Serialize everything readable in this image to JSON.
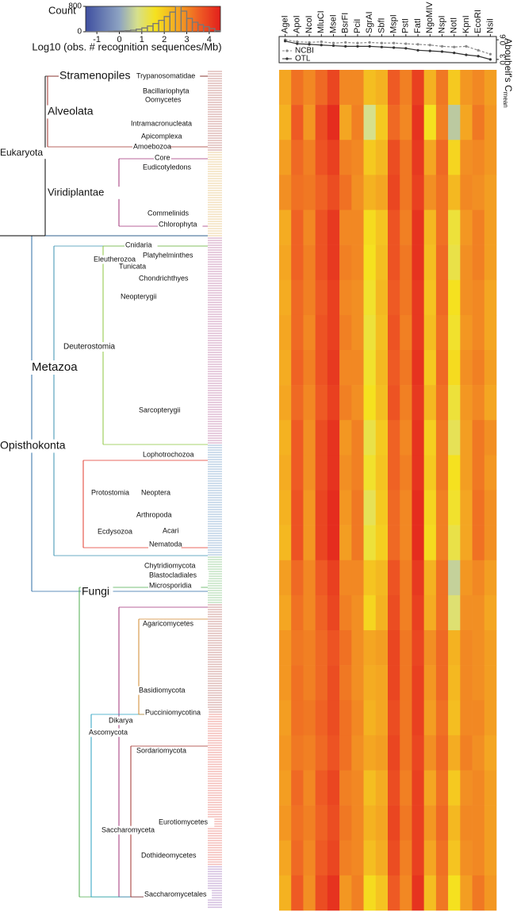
{
  "chart_data": [
    {
      "type": "histogram",
      "xlabel": "Log10 (obs. # recognition sequences/Mb)",
      "ylabel": "Count",
      "bins": [
        -1.5,
        -1.25,
        -1,
        -0.75,
        -0.5,
        -0.25,
        0,
        0.25,
        0.5,
        0.75,
        1,
        1.25,
        1.5,
        1.75,
        2,
        2.25,
        2.5,
        2.75,
        3,
        3.25,
        3.5,
        3.75,
        4,
        4.25,
        4.5
      ],
      "counts": [
        0,
        0,
        10,
        10,
        15,
        20,
        25,
        35,
        50,
        80,
        120,
        180,
        260,
        360,
        480,
        620,
        800,
        650,
        420,
        300,
        220,
        160,
        100,
        30
      ],
      "xlim": [
        -1.5,
        4.5
      ],
      "xticks": [
        -1,
        0,
        1,
        2,
        3,
        4
      ],
      "ylim": [
        0,
        800
      ],
      "yticks": [
        0,
        800
      ],
      "color": "#777777",
      "colorscale": [
        {
          "value": -1.5,
          "color": "#3f4fa0"
        },
        {
          "value": 0,
          "color": "#8da3c2"
        },
        {
          "value": 0.8,
          "color": "#d6e08c"
        },
        {
          "value": 1.6,
          "color": "#f5e11f"
        },
        {
          "value": 2.6,
          "color": "#f4a622"
        },
        {
          "value": 3.6,
          "color": "#ee5a24"
        },
        {
          "value": 4.5,
          "color": "#e21f1c"
        }
      ]
    },
    {
      "type": "line",
      "ylabel": "Abouheif's C",
      "ylabel_sub": "mean",
      "categories": [
        "AgeI",
        "ApoI",
        "NcoI",
        "MluCI",
        "MseI",
        "BsrFI",
        "PciI",
        "SgrAI",
        "SbfI",
        "MspI",
        "PstI",
        "FatI",
        "NgoMIV",
        "NspI",
        "NotI",
        "KpnI",
        "EcoRI",
        "NsiI"
      ],
      "series": [
        {
          "name": "NCBI",
          "color": "#888888",
          "linestyle": "dashed",
          "values": [
            0.6,
            0.57,
            0.56,
            0.57,
            0.55,
            0.56,
            0.55,
            0.56,
            0.55,
            0.55,
            0.54,
            0.53,
            0.52,
            0.5,
            0.49,
            0.5,
            0.44,
            0.38
          ]
        },
        {
          "name": "OTL",
          "color": "#333333",
          "linestyle": "solid",
          "values": [
            0.58,
            0.54,
            0.53,
            0.52,
            0.51,
            0.5,
            0.5,
            0.5,
            0.49,
            0.48,
            0.47,
            0.44,
            0.43,
            0.42,
            0.4,
            0.37,
            0.35,
            0.3
          ]
        }
      ],
      "ylim": [
        0.25,
        0.65
      ],
      "yticks": [
        0.3,
        0.6
      ]
    },
    {
      "type": "heatmap",
      "values": [
        [
          2.6,
          3.3,
          3.0,
          3.4,
          3.9,
          3.0,
          3.0,
          2.2,
          2.4,
          3.6,
          3.1,
          4.0,
          2.4,
          3.2,
          2.0,
          2.8,
          3.0,
          2.7
        ],
        [
          2.4,
          3.6,
          2.8,
          3.8,
          4.3,
          2.6,
          3.1,
          0.8,
          2.0,
          3.4,
          3.0,
          4.2,
          1.6,
          3.1,
          0.5,
          2.6,
          3.2,
          2.8
        ],
        [
          2.7,
          3.4,
          3.1,
          3.7,
          4.0,
          3.1,
          3.0,
          2.0,
          2.3,
          3.8,
          3.2,
          4.1,
          2.6,
          3.4,
          1.8,
          2.9,
          3.0,
          2.8
        ],
        [
          2.9,
          3.3,
          3.2,
          3.5,
          3.8,
          3.3,
          2.9,
          2.4,
          2.6,
          3.9,
          3.2,
          4.0,
          2.9,
          3.3,
          2.3,
          3.0,
          2.9,
          2.7
        ],
        [
          2.5,
          3.5,
          3.0,
          3.7,
          4.1,
          3.0,
          3.0,
          1.7,
          2.1,
          3.7,
          3.1,
          4.2,
          2.3,
          3.3,
          1.4,
          2.8,
          3.1,
          2.7
        ],
        [
          2.6,
          3.5,
          3.1,
          3.7,
          4.1,
          3.1,
          3.0,
          1.6,
          2.2,
          3.7,
          3.2,
          4.2,
          2.2,
          3.4,
          1.3,
          2.9,
          3.1,
          2.7
        ],
        [
          2.5,
          3.4,
          3.1,
          3.6,
          4.0,
          3.0,
          2.9,
          1.5,
          2.3,
          3.6,
          3.2,
          4.1,
          2.1,
          3.4,
          1.6,
          2.9,
          3.0,
          2.6
        ],
        [
          2.6,
          3.4,
          3.0,
          3.7,
          4.0,
          3.1,
          2.9,
          1.4,
          2.2,
          3.7,
          3.1,
          4.1,
          2.2,
          3.3,
          1.5,
          2.8,
          3.0,
          2.6
        ],
        [
          2.5,
          3.5,
          3.1,
          3.7,
          4.1,
          3.0,
          3.0,
          1.5,
          2.3,
          3.6,
          3.2,
          4.2,
          2.0,
          3.4,
          1.7,
          2.9,
          3.1,
          2.7
        ],
        [
          2.6,
          3.4,
          3.0,
          3.6,
          4.0,
          3.1,
          2.9,
          1.6,
          2.2,
          3.7,
          3.1,
          4.1,
          2.3,
          3.3,
          1.4,
          2.8,
          3.0,
          2.6
        ],
        [
          2.4,
          3.6,
          2.9,
          3.8,
          4.2,
          2.8,
          3.1,
          1.3,
          2.0,
          3.5,
          3.0,
          4.2,
          1.9,
          3.2,
          1.2,
          2.7,
          3.2,
          2.9
        ],
        [
          2.5,
          3.6,
          2.9,
          3.8,
          4.2,
          2.9,
          3.1,
          1.5,
          2.1,
          3.5,
          3.1,
          4.2,
          2.0,
          3.2,
          1.6,
          2.7,
          3.2,
          2.8
        ],
        [
          2.4,
          3.7,
          2.8,
          3.9,
          4.3,
          2.8,
          3.2,
          1.2,
          2.0,
          3.4,
          3.0,
          4.3,
          1.8,
          3.1,
          1.5,
          2.6,
          3.3,
          2.9
        ],
        [
          2.3,
          3.7,
          2.8,
          3.9,
          4.3,
          2.7,
          3.2,
          1.4,
          1.9,
          3.4,
          3.0,
          4.3,
          1.7,
          3.1,
          1.3,
          2.6,
          3.3,
          2.9
        ],
        [
          2.7,
          3.4,
          3.0,
          3.6,
          4.0,
          3.0,
          3.0,
          2.1,
          2.3,
          3.7,
          3.1,
          4.1,
          2.4,
          3.3,
          0.6,
          2.8,
          3.0,
          2.7
        ],
        [
          2.6,
          3.3,
          3.0,
          3.5,
          3.9,
          3.1,
          2.9,
          1.8,
          2.4,
          3.8,
          3.1,
          4.0,
          2.5,
          3.3,
          1.0,
          2.9,
          2.9,
          2.6
        ],
        [
          2.8,
          3.2,
          3.1,
          3.4,
          3.7,
          3.3,
          2.9,
          2.6,
          2.7,
          3.9,
          3.2,
          3.9,
          2.9,
          3.4,
          2.4,
          3.0,
          2.9,
          2.7
        ],
        [
          2.8,
          3.3,
          3.1,
          3.4,
          3.8,
          3.2,
          2.9,
          2.5,
          2.6,
          3.9,
          3.2,
          4.0,
          2.8,
          3.4,
          2.3,
          3.0,
          2.9,
          2.7
        ],
        [
          2.7,
          3.3,
          3.2,
          3.5,
          3.8,
          3.3,
          3.0,
          2.4,
          2.6,
          3.8,
          3.2,
          4.0,
          2.7,
          3.3,
          2.2,
          3.0,
          3.0,
          2.7
        ],
        [
          2.8,
          3.2,
          3.1,
          3.4,
          3.7,
          3.3,
          2.9,
          2.6,
          2.7,
          3.9,
          3.2,
          3.9,
          2.9,
          3.4,
          2.5,
          3.1,
          2.9,
          2.6
        ],
        [
          2.7,
          3.4,
          3.0,
          3.6,
          3.9,
          3.1,
          3.0,
          2.2,
          2.5,
          3.8,
          3.1,
          4.0,
          2.6,
          3.3,
          2.0,
          2.9,
          3.0,
          2.7
        ],
        [
          2.8,
          3.3,
          3.1,
          3.5,
          3.8,
          3.2,
          3.0,
          2.4,
          2.6,
          3.9,
          3.2,
          4.0,
          2.8,
          3.4,
          2.3,
          3.0,
          3.0,
          2.7
        ],
        [
          2.6,
          3.4,
          3.0,
          3.6,
          3.9,
          3.1,
          3.0,
          2.2,
          2.5,
          3.8,
          3.1,
          4.0,
          2.6,
          3.3,
          2.1,
          2.9,
          3.0,
          2.7
        ],
        [
          2.4,
          3.6,
          2.9,
          3.8,
          4.2,
          2.8,
          3.1,
          1.7,
          2.1,
          3.6,
          3.0,
          4.2,
          2.2,
          3.2,
          1.6,
          2.7,
          3.2,
          2.8
        ]
      ]
    }
  ],
  "tree": {
    "clades": [
      {
        "label": "Stramenopiles",
        "color": "#a0322d"
      },
      {
        "label": "Trypanosomatidae",
        "color": "#a0322d"
      },
      {
        "label": "Bacillariophyta",
        "color": "#d0892e"
      },
      {
        "label": "Oomycetes",
        "color": "#3a78b5"
      },
      {
        "label": "Alveolata",
        "color": "#a0322d"
      },
      {
        "label": "Intramacronucleata",
        "color": "#2a9d8f"
      },
      {
        "label": "Apicomplexa",
        "color": "#d0892e"
      },
      {
        "label": "Amoebozoa",
        "color": "#a0322d"
      },
      {
        "label": "Eukaryota",
        "color": "#000000"
      },
      {
        "label": "Core",
        "color": "#d9a33a"
      },
      {
        "label": "Eudicotyledons",
        "color": "#d9a33a"
      },
      {
        "label": "Viridiplantae",
        "color": "#a0337a"
      },
      {
        "label": "Commelinids",
        "color": "#3a78b5"
      },
      {
        "label": "Chlorophyta",
        "color": "#d9a33a"
      },
      {
        "label": "Cnidaria",
        "color": "#8cc63f"
      },
      {
        "label": "Platyhelminthes",
        "color": "#a0337a"
      },
      {
        "label": "Eleutherozoa",
        "color": "#4cae4c"
      },
      {
        "label": "Tunicata",
        "color": "#a0337a"
      },
      {
        "label": "Chondrichthyes",
        "color": "#c8d050"
      },
      {
        "label": "Neopterygii",
        "color": "#2e6ea6"
      },
      {
        "label": "Deuterostomia",
        "color": "#8cc63f"
      },
      {
        "label": "Metazoa",
        "color": "#3a90b0"
      },
      {
        "label": "Sarcopterygii",
        "color": "#a0337a"
      },
      {
        "label": "Opisthokonta",
        "color": "#2e6ea6"
      },
      {
        "label": "Lophotrochozoa",
        "color": "#2e6ea6"
      },
      {
        "label": "Protostomia",
        "color": "#e0382b"
      },
      {
        "label": "Neoptera",
        "color": "#3a78b5"
      },
      {
        "label": "Arthropoda",
        "color": "#d0892e"
      },
      {
        "label": "Ecdysozoa",
        "color": "#4cae4c"
      },
      {
        "label": "Acari",
        "color": "#e0382b"
      },
      {
        "label": "Nematoda",
        "color": "#a0337a"
      },
      {
        "label": "Chytridiomycota",
        "color": "#c8d050"
      },
      {
        "label": "Blastocladiales",
        "color": "#d0892e"
      },
      {
        "label": "Microsporidia",
        "color": "#2aa0c0"
      },
      {
        "label": "Fungi",
        "color": "#4cae4c"
      },
      {
        "label": "Agaricomycetes",
        "color": "#a0322d"
      },
      {
        "label": "Basidiomycota",
        "color": "#d0892e"
      },
      {
        "label": "Pucciniomycotina",
        "color": "#7a3aa0"
      },
      {
        "label": "Dikarya",
        "color": "#a0337a"
      },
      {
        "label": "Ascomycota",
        "color": "#2aa0c0"
      },
      {
        "label": "Sordariomycota",
        "color": "#e0382b"
      },
      {
        "label": "Eurotiomycetes",
        "color": "#4cae4c"
      },
      {
        "label": "Saccharomyceta",
        "color": "#a0322d"
      },
      {
        "label": "Dothideomycetes",
        "color": "#8cc63f"
      },
      {
        "label": "Saccharomycetales",
        "color": "#7a3aa0"
      }
    ]
  }
}
